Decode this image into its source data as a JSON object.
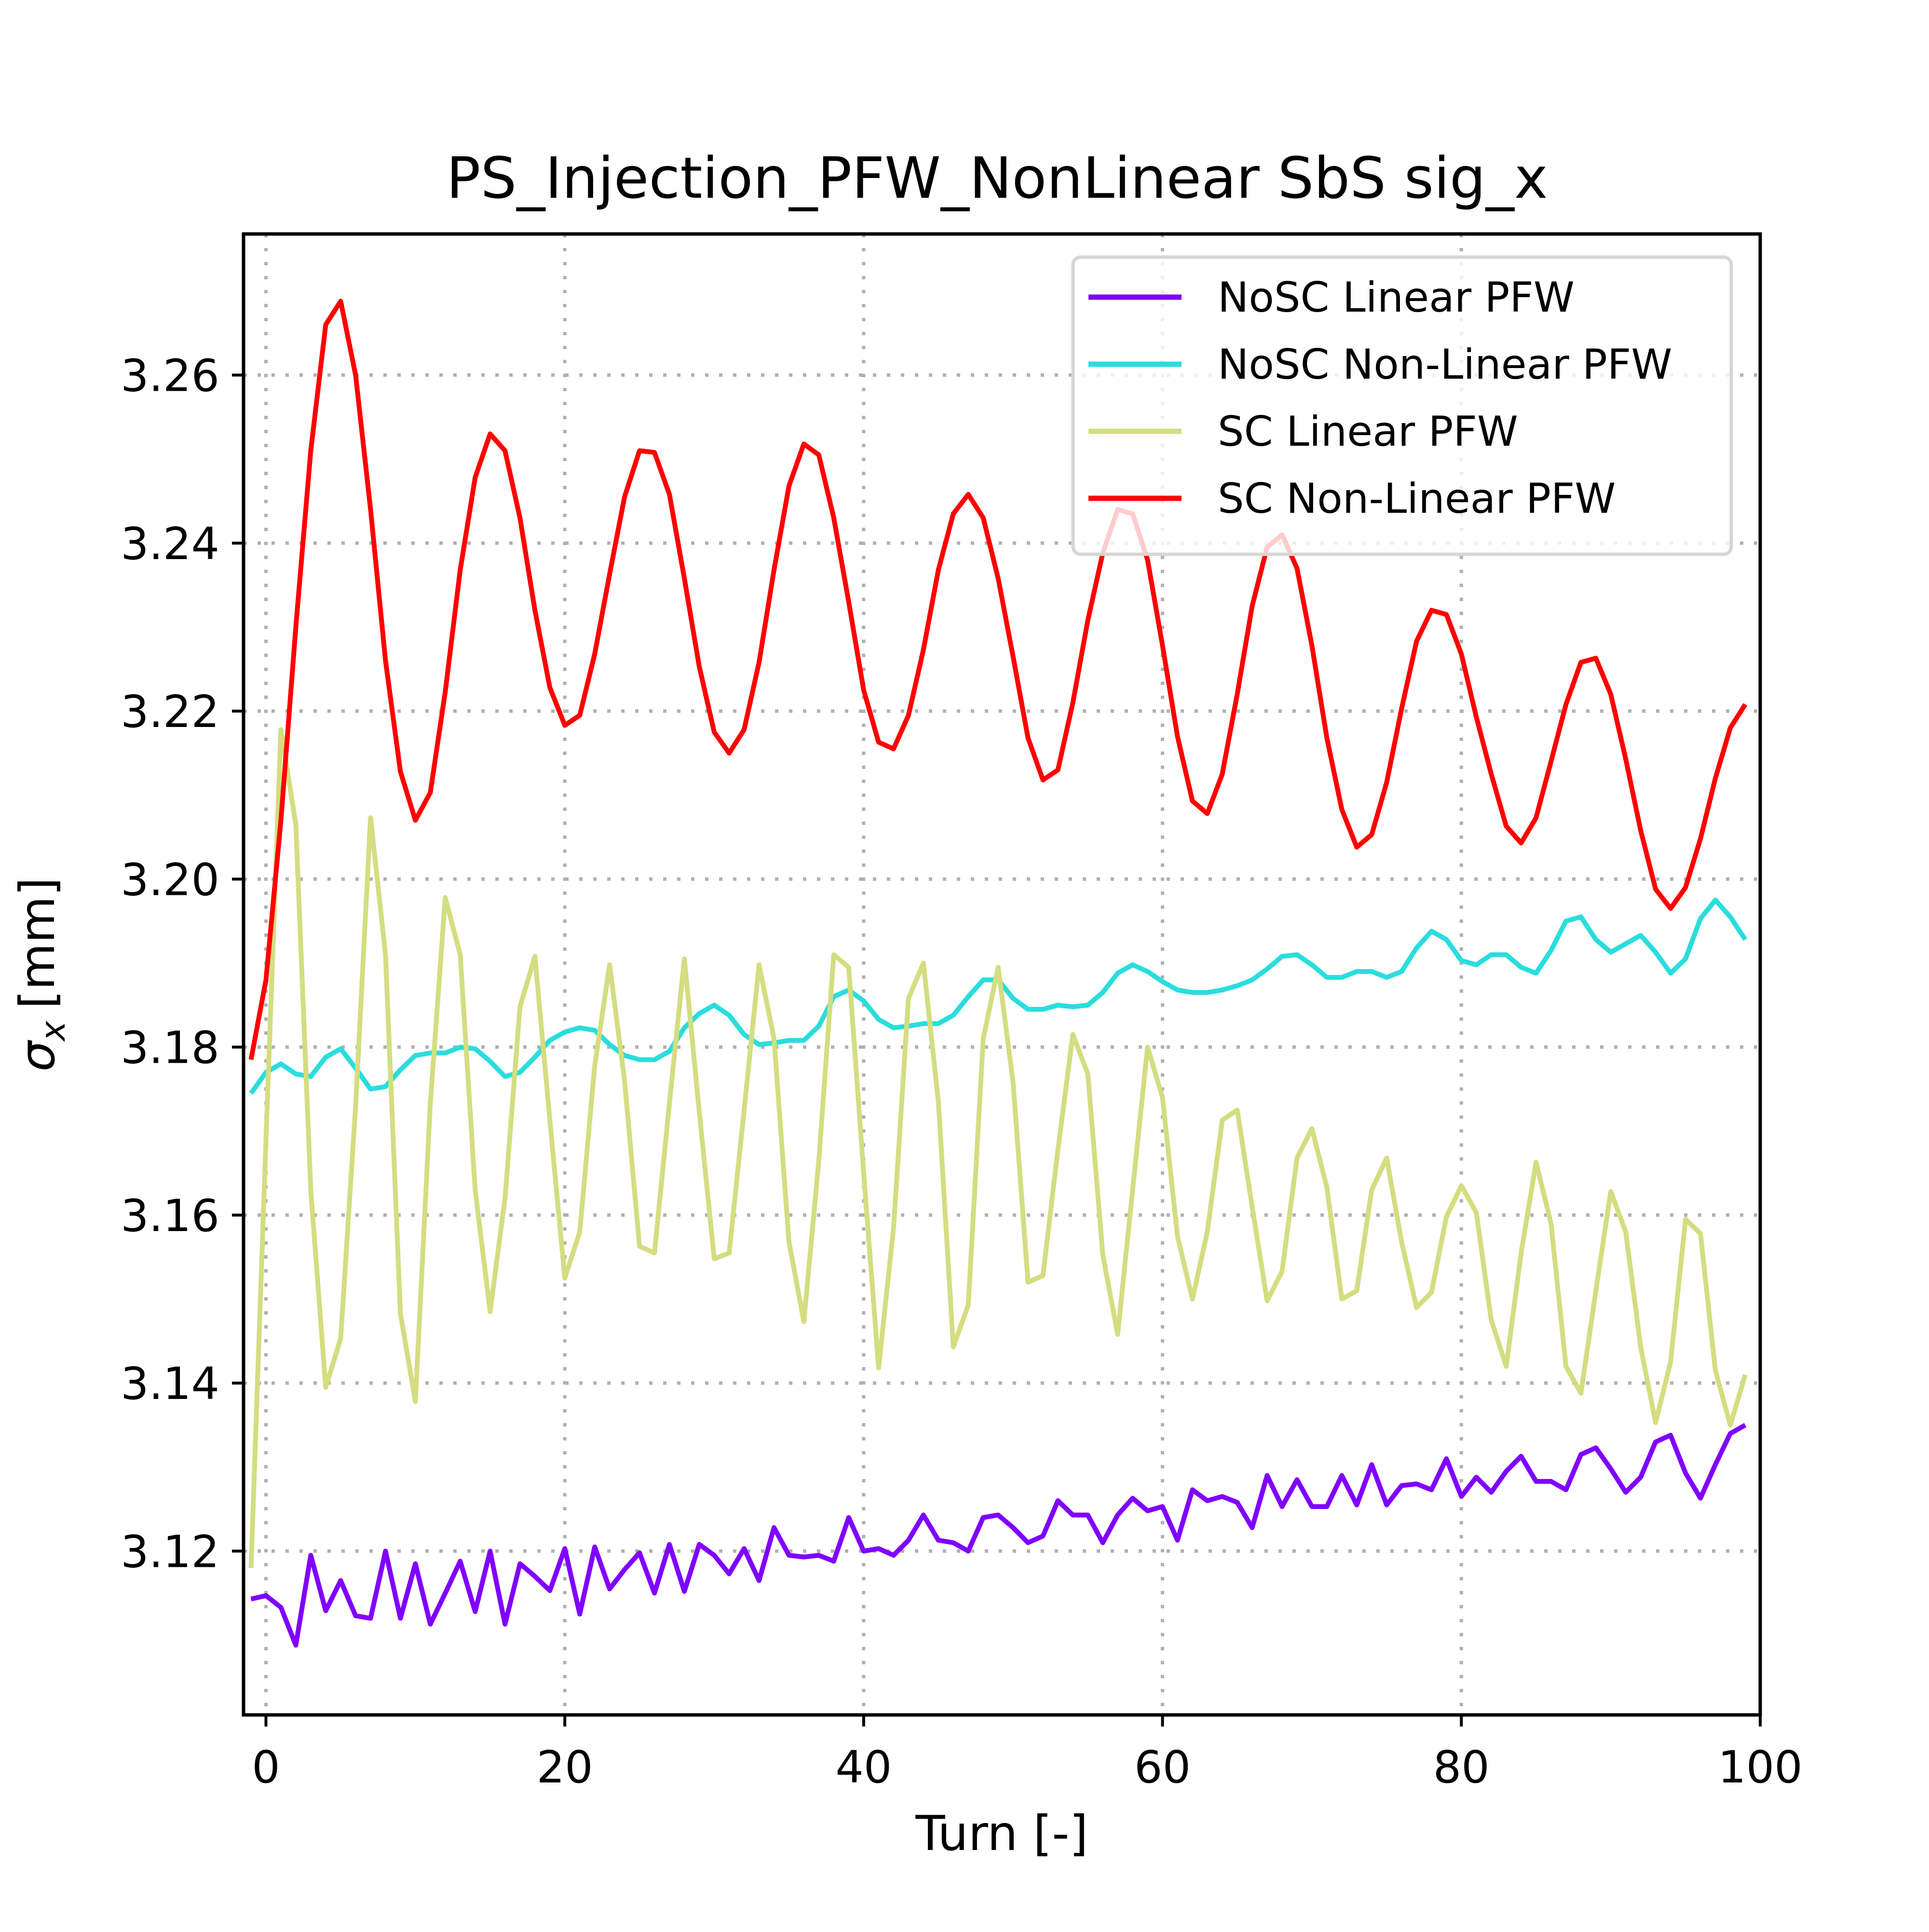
{
  "chart_data": {
    "type": "line",
    "title": "PS_Injection_PFW_NonLinear SbS sig_x",
    "xlabel": "Turn [-]",
    "ylabel_symbol": "σ",
    "ylabel_subscript": "x",
    "ylabel_unit": "[mm]",
    "xlim": [
      -1.5,
      100
    ],
    "ylim": [
      3.1005,
      3.2768
    ],
    "x_ticks": [
      0,
      20,
      40,
      60,
      80,
      100
    ],
    "x_tick_labels": [
      "0",
      "20",
      "40",
      "60",
      "80",
      "100"
    ],
    "y_ticks": [
      3.12,
      3.14,
      3.16,
      3.18,
      3.2,
      3.22,
      3.24,
      3.26
    ],
    "y_tick_labels": [
      "3.12",
      "3.14",
      "3.16",
      "3.18",
      "3.20",
      "3.22",
      "3.24",
      "3.26"
    ],
    "grid": true,
    "legend_position": "top-right",
    "x_start": -1,
    "series": [
      {
        "name": "NoSC Linear PFW",
        "color": "#8000ff",
        "values": [
          3.1143,
          3.1147,
          3.1133,
          3.1088,
          3.1195,
          3.1129,
          3.1165,
          3.1123,
          3.112,
          3.12,
          3.112,
          3.1185,
          3.1113,
          3.115,
          3.1188,
          3.1128,
          3.12,
          3.1113,
          3.1185,
          3.117,
          3.1153,
          3.1203,
          3.1125,
          3.1205,
          3.1155,
          3.1178,
          3.1198,
          3.115,
          3.1208,
          3.1152,
          3.1208,
          3.1195,
          3.1173,
          3.1203,
          3.1165,
          3.1228,
          3.1195,
          3.1193,
          3.1195,
          3.1188,
          3.124,
          3.12,
          3.1203,
          3.1195,
          3.1213,
          3.1243,
          3.1213,
          3.121,
          3.12,
          3.124,
          3.1243,
          3.1228,
          3.121,
          3.1218,
          3.126,
          3.1243,
          3.1243,
          3.121,
          3.1243,
          3.1263,
          3.1248,
          3.1253,
          3.1213,
          3.1273,
          3.126,
          3.1265,
          3.1258,
          3.1228,
          3.129,
          3.1253,
          3.1285,
          3.1253,
          3.1253,
          3.129,
          3.1255,
          3.1303,
          3.1255,
          3.1278,
          3.128,
          3.1273,
          3.131,
          3.1265,
          3.1288,
          3.127,
          3.1295,
          3.1313,
          3.1283,
          3.1283,
          3.1273,
          3.1315,
          3.1323,
          3.1298,
          3.127,
          3.1288,
          3.133,
          3.1338,
          3.1293,
          3.1263,
          3.1303,
          3.134,
          3.135
        ]
      },
      {
        "name": "NoSC Non-Linear PFW",
        "color": "#2adddd",
        "values": [
          3.1745,
          3.177,
          3.178,
          3.1768,
          3.1765,
          3.1788,
          3.1798,
          3.1775,
          3.175,
          3.1753,
          3.1773,
          3.179,
          3.1793,
          3.1793,
          3.18,
          3.1798,
          3.1783,
          3.1765,
          3.177,
          3.1788,
          3.1808,
          3.1818,
          3.1823,
          3.182,
          3.1803,
          3.179,
          3.1785,
          3.1785,
          3.1795,
          3.1823,
          3.184,
          3.185,
          3.1838,
          3.1815,
          3.1803,
          3.1805,
          3.1808,
          3.1808,
          3.1825,
          3.186,
          3.1868,
          3.1855,
          3.1833,
          3.1823,
          3.1825,
          3.1828,
          3.1828,
          3.1838,
          3.186,
          3.188,
          3.188,
          3.1858,
          3.1845,
          3.1845,
          3.185,
          3.1848,
          3.185,
          3.1865,
          3.1888,
          3.1898,
          3.189,
          3.1878,
          3.1868,
          3.1865,
          3.1865,
          3.1868,
          3.1873,
          3.188,
          3.1893,
          3.1908,
          3.191,
          3.1898,
          3.1883,
          3.1883,
          3.189,
          3.189,
          3.1883,
          3.189,
          3.1918,
          3.1938,
          3.1928,
          3.1903,
          3.1898,
          3.191,
          3.191,
          3.1895,
          3.1888,
          3.1915,
          3.195,
          3.1955,
          3.1928,
          3.1913,
          3.1923,
          3.1933,
          3.1913,
          3.1888,
          3.1905,
          3.1953,
          3.1975,
          3.1955,
          3.1928
        ]
      },
      {
        "name": "SC Linear PFW",
        "color": "#d4dd80",
        "values": [
          3.118,
          3.169,
          3.2178,
          3.2065,
          3.163,
          3.1395,
          3.1453,
          3.173,
          3.2073,
          3.191,
          3.1483,
          3.1378,
          3.1733,
          3.1978,
          3.191,
          3.163,
          3.1485,
          3.162,
          3.1848,
          3.1908,
          3.1713,
          3.1525,
          3.158,
          3.1778,
          3.1898,
          3.176,
          3.1563,
          3.1555,
          3.1733,
          3.1905,
          3.1723,
          3.1548,
          3.1555,
          3.1725,
          3.1898,
          3.181,
          3.1568,
          3.1473,
          3.1665,
          3.191,
          3.1895,
          3.165,
          3.1418,
          3.1585,
          3.1858,
          3.19,
          3.1735,
          3.1443,
          3.1493,
          3.181,
          3.1895,
          3.1758,
          3.152,
          3.1528,
          3.1678,
          3.1815,
          3.1768,
          3.1553,
          3.1458,
          3.163,
          3.18,
          3.174,
          3.1575,
          3.15,
          3.158,
          3.1713,
          3.1725,
          3.161,
          3.1498,
          3.1533,
          3.1668,
          3.1703,
          3.1633,
          3.15,
          3.151,
          3.163,
          3.1668,
          3.1568,
          3.149,
          3.1508,
          3.1598,
          3.1635,
          3.1603,
          3.1475,
          3.142,
          3.1555,
          3.1663,
          3.159,
          3.142,
          3.1388,
          3.151,
          3.1628,
          3.158,
          3.1443,
          3.1353,
          3.1425,
          3.1595,
          3.1578,
          3.1415,
          3.135,
          3.141
        ]
      },
      {
        "name": "SC Non-Linear PFW",
        "color": "#ff0000",
        "values": [
          3.1785,
          3.188,
          3.207,
          3.23,
          3.251,
          3.266,
          3.2688,
          3.26,
          3.244,
          3.226,
          3.2128,
          3.207,
          3.2103,
          3.2223,
          3.2368,
          3.2478,
          3.253,
          3.251,
          3.243,
          3.232,
          3.2228,
          3.2183,
          3.2195,
          3.2268,
          3.2363,
          3.2455,
          3.251,
          3.2508,
          3.2458,
          3.2358,
          3.2253,
          3.2175,
          3.215,
          3.2178,
          3.2258,
          3.2368,
          3.2468,
          3.2518,
          3.2505,
          3.243,
          3.233,
          3.2225,
          3.2163,
          3.2155,
          3.2195,
          3.2273,
          3.2368,
          3.2435,
          3.2458,
          3.243,
          3.2358,
          3.2265,
          3.2168,
          3.2118,
          3.213,
          3.221,
          3.2308,
          3.2388,
          3.244,
          3.2435,
          3.238,
          3.2278,
          3.217,
          3.2093,
          3.2078,
          3.2125,
          3.222,
          3.2325,
          3.2395,
          3.241,
          3.237,
          3.2278,
          3.2168,
          3.2083,
          3.2038,
          3.2053,
          3.2115,
          3.2203,
          3.2283,
          3.232,
          3.2315,
          3.2268,
          3.2193,
          3.2125,
          3.2063,
          3.2043,
          3.2073,
          3.214,
          3.2208,
          3.2258,
          3.2263,
          3.222,
          3.2143,
          3.2058,
          3.1988,
          3.1965,
          3.199,
          3.2048,
          3.212,
          3.218,
          3.2208
        ]
      }
    ]
  }
}
